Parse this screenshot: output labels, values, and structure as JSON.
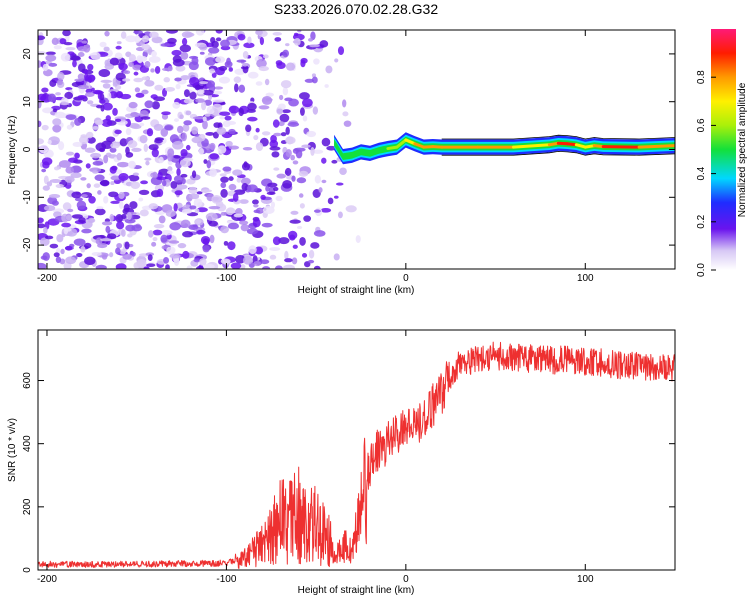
{
  "title": "S233.2026.070.02.28.G32",
  "chart_data": [
    {
      "type": "heatmap",
      "xlabel": "Height of straight line (km)",
      "ylabel": "Frequency (Hz)",
      "xlim": [
        -205,
        150
      ],
      "ylim": [
        -25,
        25
      ],
      "xticks": [
        -200,
        -100,
        0,
        100
      ],
      "yticks": [
        -20,
        -10,
        0,
        10,
        20
      ],
      "colorbar": {
        "label": "Normalized spectral amplitude",
        "range": [
          0.0,
          1.0
        ],
        "ticks": [
          0.0,
          0.2,
          0.4,
          0.6,
          0.8
        ]
      },
      "ridge": {
        "description": "frequency track of strongest spectral peak",
        "x": [
          -40,
          -35,
          -30,
          -25,
          -20,
          -15,
          -10,
          -5,
          0,
          5,
          10,
          15,
          20,
          40,
          60,
          80,
          85,
          90,
          95,
          100,
          105,
          110,
          130,
          150
        ],
        "y": [
          1.5,
          -1.5,
          -1.2,
          -0.5,
          -0.8,
          -0.2,
          0.2,
          0.5,
          2.0,
          1.2,
          0.5,
          0.6,
          0.5,
          0.5,
          0.5,
          1.0,
          1.3,
          1.2,
          1.0,
          0.5,
          0.8,
          0.6,
          0.5,
          0.8
        ],
        "amplitude": [
          0.25,
          0.3,
          0.35,
          0.3,
          0.35,
          0.4,
          0.45,
          0.6,
          0.75,
          0.8,
          0.85,
          0.8,
          0.82,
          0.85,
          0.85,
          0.7,
          0.9,
          0.95,
          0.85,
          0.6,
          0.85,
          0.9,
          0.9,
          0.8
        ]
      }
    },
    {
      "type": "line",
      "xlabel": "Height of straight line (km)",
      "ylabel": "SNR (10 * v/v)",
      "xlim": [
        -205,
        150
      ],
      "ylim": [
        0,
        760
      ],
      "xticks": [
        -200,
        -100,
        0,
        100
      ],
      "yticks": [
        0,
        200,
        400,
        600
      ],
      "series": [
        {
          "name": "SNR",
          "color": "#ee3030",
          "x": [
            -205,
            -150,
            -100,
            -90,
            -80,
            -75,
            -70,
            -65,
            -60,
            -55,
            -50,
            -45,
            -40,
            -35,
            -30,
            -25,
            -20,
            -15,
            -10,
            -5,
            0,
            5,
            10,
            15,
            20,
            25,
            30,
            40,
            50,
            60,
            70,
            80,
            90,
            100,
            110,
            120,
            130,
            140,
            150
          ],
          "y": [
            18,
            18,
            22,
            35,
            80,
            110,
            150,
            160,
            180,
            140,
            150,
            120,
            60,
            80,
            70,
            200,
            330,
            390,
            400,
            430,
            450,
            460,
            480,
            520,
            560,
            620,
            650,
            670,
            680,
            670,
            670,
            665,
            665,
            660,
            655,
            650,
            645,
            640,
            640
          ]
        }
      ]
    }
  ]
}
